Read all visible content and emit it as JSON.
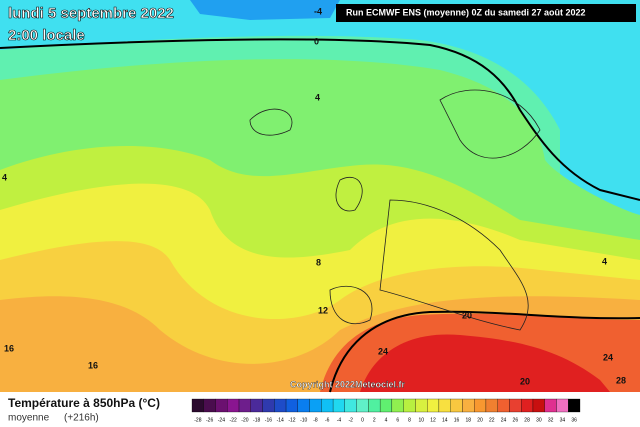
{
  "header": {
    "date": "lundi 5 septembre 2022",
    "time": "2:00 locale",
    "run": "Run ECMWF ENS (moyenne) 0Z du samedi 27 août 2022"
  },
  "contours": [
    "-4",
    "0",
    "4",
    "4",
    "4",
    "8",
    "12",
    "16",
    "16",
    "20",
    "20",
    "24",
    "24",
    "28"
  ],
  "copyright": "Copyright 2022Meteociel.fr",
  "footer": {
    "title": "Température à 850hPa (°C)",
    "subtitle": "moyenne",
    "lead": "(+216h)"
  },
  "scale": {
    "labels": [
      -28,
      -26,
      -24,
      -22,
      -20,
      -18,
      -16,
      -14,
      -12,
      -10,
      -8,
      -6,
      -4,
      -2,
      0,
      2,
      4,
      6,
      8,
      10,
      12,
      14,
      16,
      18,
      20,
      22,
      24,
      26,
      28,
      30,
      32,
      34,
      36
    ],
    "colors": [
      "#2b0a2e",
      "#4a0d4e",
      "#6b1070",
      "#8a1590",
      "#6e1e8c",
      "#4b2a9a",
      "#2f3aae",
      "#1e4cc8",
      "#1060e0",
      "#0a7ef0",
      "#0aa0f5",
      "#10c0f5",
      "#20d8f0",
      "#40e8e0",
      "#60f0c8",
      "#50f0a0",
      "#60f070",
      "#90f050",
      "#b8f040",
      "#d8f040",
      "#f0f040",
      "#f8e040",
      "#f8c840",
      "#f8b040",
      "#f89830",
      "#f08030",
      "#f06030",
      "#e84030",
      "#e02020",
      "#c81010",
      "#e03090",
      "#f070c0",
      "#000000"
    ]
  }
}
